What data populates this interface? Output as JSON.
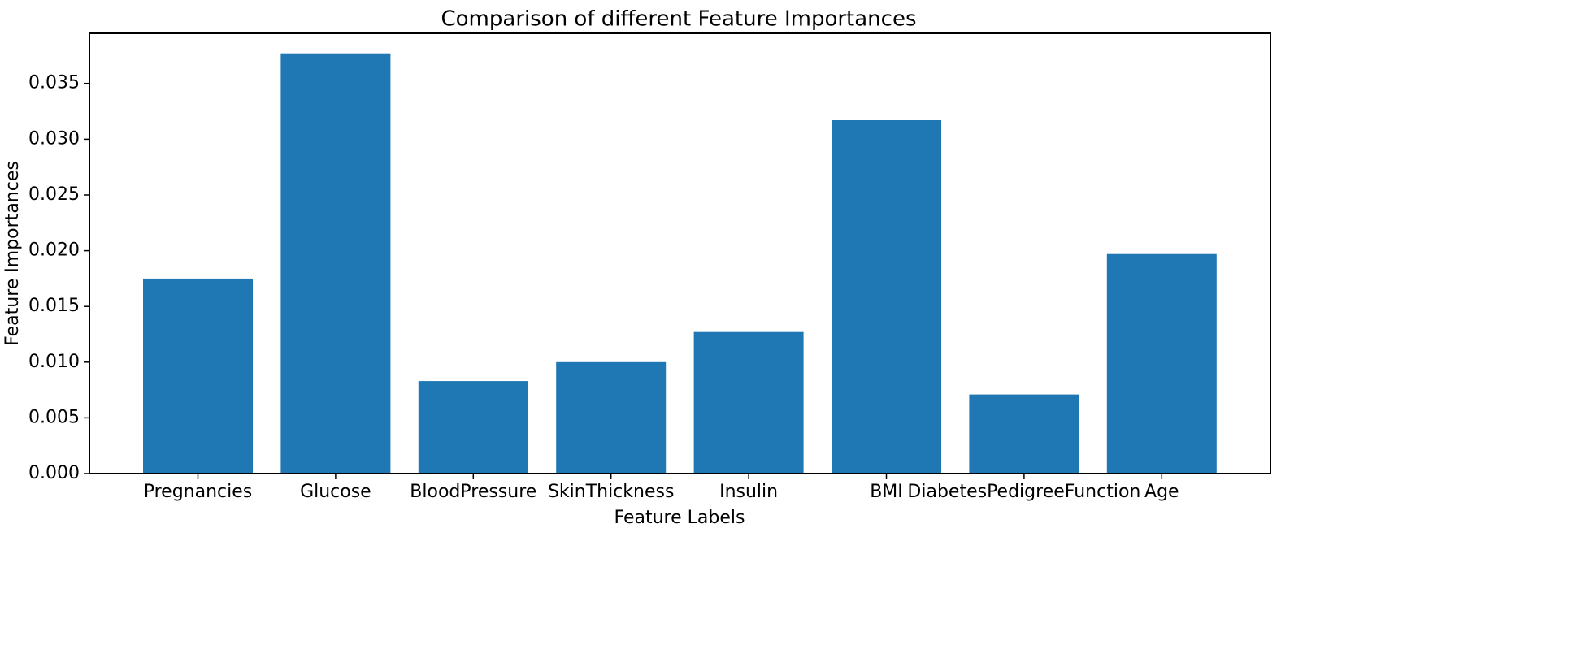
{
  "chart_data": {
    "type": "bar",
    "title": "Comparison of different Feature Importances",
    "xlabel": "Feature Labels",
    "ylabel": "Feature Importances",
    "categories": [
      "Pregnancies",
      "Glucose",
      "BloodPressure",
      "SkinThickness",
      "Insulin",
      "BMI",
      "DiabetesPedigreeFunction",
      "Age"
    ],
    "values": [
      0.0175,
      0.0377,
      0.0083,
      0.01,
      0.0127,
      0.0317,
      0.0071,
      0.0197
    ],
    "ylim": [
      0.0,
      0.0395
    ],
    "yticks": [
      0.0,
      0.005,
      0.01,
      0.015,
      0.02,
      0.025,
      0.03,
      0.035
    ],
    "ytick_labels": [
      "0.000",
      "0.005",
      "0.010",
      "0.015",
      "0.020",
      "0.025",
      "0.030",
      "0.035"
    ],
    "bar_color": "#1f77b4",
    "grid": false,
    "legend": "none"
  }
}
